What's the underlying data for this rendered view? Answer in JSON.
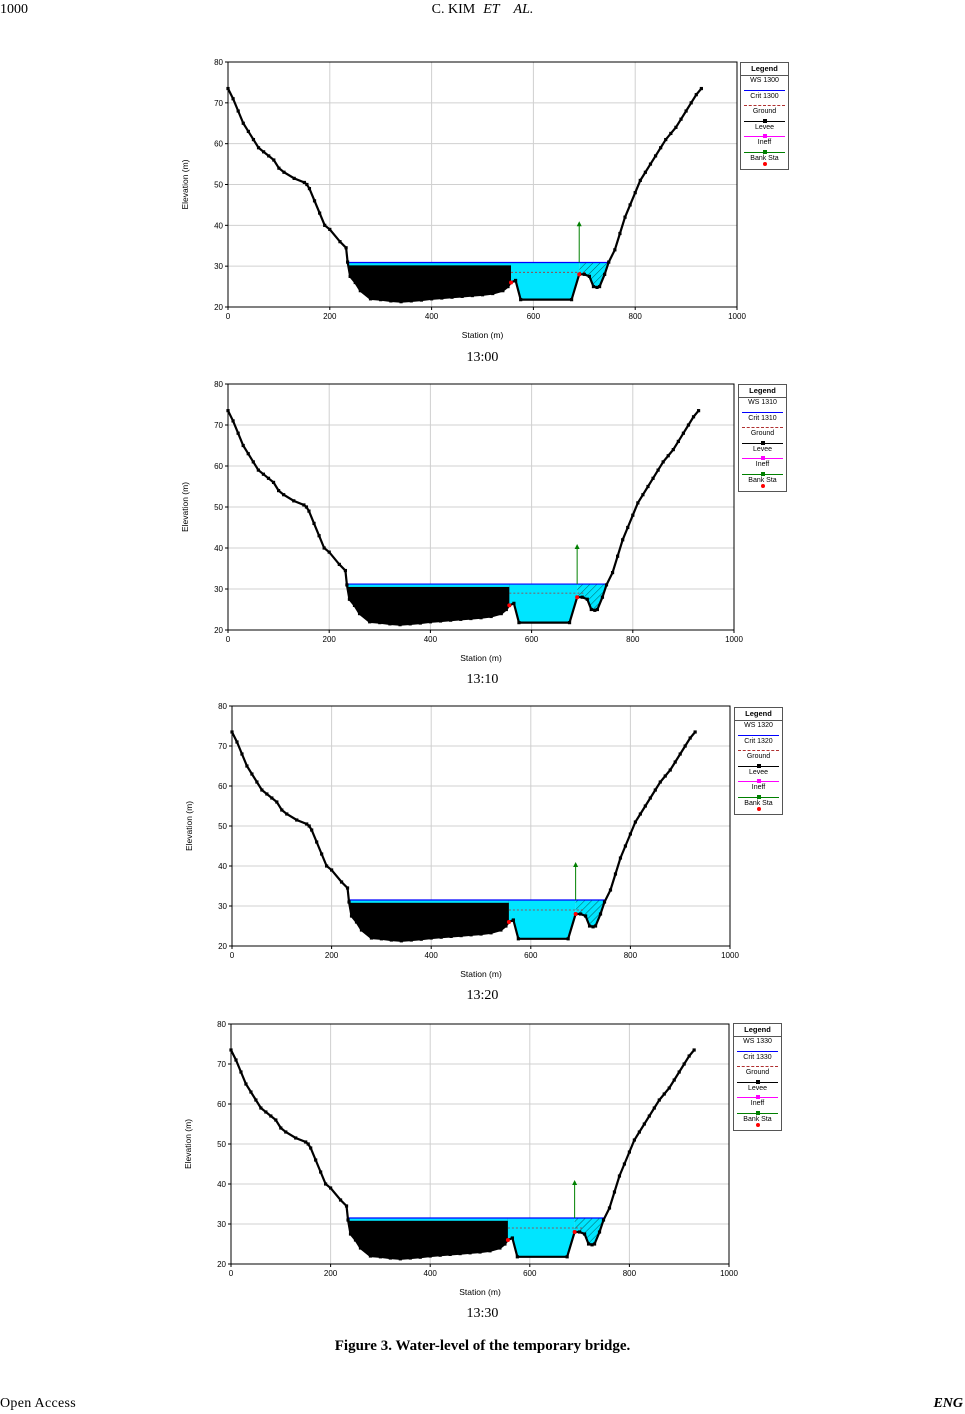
{
  "header": {
    "page_number": "1000",
    "authors_name": "C. KIM",
    "authors_et": "ET",
    "authors_al": "AL."
  },
  "footer": {
    "left": "Open  Access",
    "right": "ENG"
  },
  "figure_caption": "Figure 3. Water-level of the temporary bridge.",
  "colors": {
    "water": "#00e5ff",
    "ground": "#000000",
    "ws_line": "#0000ff",
    "crit_line": "#b03030",
    "levee": "#ff00ff",
    "ineff": "#008000",
    "bank_sta": "#ff0000",
    "grid": "#d0d0d0"
  },
  "chart_data": [
    {
      "type": "area",
      "caption": "13:00",
      "xlabel": "Station (m)",
      "ylabel": "Elevation (m)",
      "xlim": [
        0,
        1000
      ],
      "ylim": [
        20,
        80
      ],
      "xticks": [
        "0",
        "200",
        "400",
        "600",
        "800",
        "1000"
      ],
      "yticks": [
        "20",
        "30",
        "40",
        "50",
        "60",
        "70",
        "80"
      ],
      "legend": {
        "title": "Legend",
        "entries": [
          "WS 1300",
          "Crit 1300",
          "Ground",
          "Levee",
          "Ineff",
          "Bank Sta"
        ]
      },
      "water_surface": 30.9,
      "critical_depth": 28.5,
      "ineff_station": 690,
      "ineff_top": 40.5,
      "ground": [
        [
          0,
          73.5
        ],
        [
          10,
          71
        ],
        [
          20,
          68
        ],
        [
          30,
          65
        ],
        [
          40,
          63
        ],
        [
          50,
          61
        ],
        [
          60,
          59
        ],
        [
          70,
          58
        ],
        [
          80,
          57
        ],
        [
          90,
          56
        ],
        [
          100,
          54
        ],
        [
          110,
          53
        ],
        [
          130,
          51.5
        ],
        [
          150,
          50.5
        ],
        [
          155,
          50
        ],
        [
          160,
          49
        ],
        [
          170,
          46
        ],
        [
          180,
          43
        ],
        [
          190,
          40
        ],
        [
          200,
          39
        ],
        [
          220,
          36
        ],
        [
          232,
          34.5
        ],
        [
          235,
          31
        ],
        [
          240,
          27.5
        ],
        [
          250,
          26
        ],
        [
          260,
          24
        ],
        [
          280,
          22
        ],
        [
          300,
          21.8
        ],
        [
          320,
          21.5
        ],
        [
          340,
          21.3
        ],
        [
          360,
          21.5
        ],
        [
          380,
          21.7
        ],
        [
          400,
          22
        ],
        [
          420,
          22.2
        ],
        [
          440,
          22.4
        ],
        [
          460,
          22.6
        ],
        [
          480,
          22.8
        ],
        [
          500,
          23
        ],
        [
          520,
          23.3
        ],
        [
          540,
          24
        ],
        [
          550,
          25
        ],
        [
          556,
          26
        ],
        [
          565,
          26.5
        ],
        [
          575,
          21.8
        ],
        [
          675,
          21.8
        ],
        [
          690,
          28
        ],
        [
          700,
          28
        ],
        [
          710,
          27.5
        ],
        [
          718,
          25
        ],
        [
          725,
          24.8
        ],
        [
          730,
          25
        ],
        [
          740,
          28
        ],
        [
          748,
          31
        ],
        [
          760,
          34
        ],
        [
          770,
          38
        ],
        [
          780,
          42
        ],
        [
          790,
          45
        ],
        [
          800,
          48
        ],
        [
          810,
          51
        ],
        [
          820,
          53
        ],
        [
          830,
          55
        ],
        [
          840,
          57
        ],
        [
          850,
          59
        ],
        [
          860,
          61
        ],
        [
          870,
          62.5
        ],
        [
          880,
          64
        ],
        [
          890,
          66
        ],
        [
          900,
          68
        ],
        [
          910,
          70
        ],
        [
          920,
          72
        ],
        [
          930,
          73.5
        ]
      ]
    },
    {
      "type": "area",
      "caption": "13:10",
      "xlabel": "Station (m)",
      "ylabel": "Elevation (m)",
      "xlim": [
        0,
        1000
      ],
      "ylim": [
        20,
        80
      ],
      "xticks": [
        "0",
        "200",
        "400",
        "600",
        "800",
        "1000"
      ],
      "yticks": [
        "20",
        "30",
        "40",
        "50",
        "60",
        "70",
        "80"
      ],
      "legend": {
        "title": "Legend",
        "entries": [
          "WS 1310",
          "Crit 1310",
          "Ground",
          "Levee",
          "Ineff",
          "Bank Sta"
        ]
      },
      "water_surface": 31.2,
      "critical_depth": 29.0,
      "ineff_station": 690,
      "ineff_top": 40.5,
      "ground": [
        [
          0,
          73.5
        ],
        [
          10,
          71
        ],
        [
          20,
          68
        ],
        [
          30,
          65
        ],
        [
          40,
          63
        ],
        [
          50,
          61
        ],
        [
          60,
          59
        ],
        [
          70,
          58
        ],
        [
          80,
          57
        ],
        [
          90,
          56
        ],
        [
          100,
          54
        ],
        [
          110,
          53
        ],
        [
          130,
          51.5
        ],
        [
          150,
          50.5
        ],
        [
          155,
          50
        ],
        [
          160,
          49
        ],
        [
          170,
          46
        ],
        [
          180,
          43
        ],
        [
          190,
          40
        ],
        [
          200,
          39
        ],
        [
          220,
          36
        ],
        [
          232,
          34.5
        ],
        [
          235,
          31
        ],
        [
          240,
          27.5
        ],
        [
          250,
          26
        ],
        [
          260,
          24
        ],
        [
          280,
          22
        ],
        [
          300,
          21.8
        ],
        [
          320,
          21.5
        ],
        [
          340,
          21.3
        ],
        [
          360,
          21.5
        ],
        [
          380,
          21.7
        ],
        [
          400,
          22
        ],
        [
          420,
          22.2
        ],
        [
          440,
          22.4
        ],
        [
          460,
          22.6
        ],
        [
          480,
          22.8
        ],
        [
          500,
          23
        ],
        [
          520,
          23.3
        ],
        [
          540,
          24
        ],
        [
          550,
          25
        ],
        [
          556,
          26
        ],
        [
          565,
          26.5
        ],
        [
          575,
          21.8
        ],
        [
          675,
          21.8
        ],
        [
          690,
          28
        ],
        [
          700,
          28
        ],
        [
          710,
          27.5
        ],
        [
          718,
          25
        ],
        [
          725,
          24.8
        ],
        [
          730,
          25
        ],
        [
          740,
          28
        ],
        [
          748,
          31
        ],
        [
          760,
          34
        ],
        [
          770,
          38
        ],
        [
          780,
          42
        ],
        [
          790,
          45
        ],
        [
          800,
          48
        ],
        [
          810,
          51
        ],
        [
          820,
          53
        ],
        [
          830,
          55
        ],
        [
          840,
          57
        ],
        [
          850,
          59
        ],
        [
          860,
          61
        ],
        [
          870,
          62.5
        ],
        [
          880,
          64
        ],
        [
          890,
          66
        ],
        [
          900,
          68
        ],
        [
          910,
          70
        ],
        [
          920,
          72
        ],
        [
          930,
          73.5
        ]
      ]
    },
    {
      "type": "area",
      "caption": "13:20",
      "xlabel": "Station (m)",
      "ylabel": "Elevation (m)",
      "xlim": [
        0,
        1000
      ],
      "ylim": [
        20,
        80
      ],
      "xticks": [
        "0",
        "200",
        "400",
        "600",
        "800",
        "1000"
      ],
      "yticks": [
        "20",
        "30",
        "40",
        "50",
        "60",
        "70",
        "80"
      ],
      "legend": {
        "title": "Legend",
        "entries": [
          "WS 1320",
          "Crit 1320",
          "Ground",
          "Levee",
          "Ineff",
          "Bank Sta"
        ]
      },
      "water_surface": 31.5,
      "critical_depth": 29.0,
      "ineff_station": 690,
      "ineff_top": 40.5,
      "ground": [
        [
          0,
          73.5
        ],
        [
          10,
          71
        ],
        [
          20,
          68
        ],
        [
          30,
          65
        ],
        [
          40,
          63
        ],
        [
          50,
          61
        ],
        [
          60,
          59
        ],
        [
          70,
          58
        ],
        [
          80,
          57
        ],
        [
          90,
          56
        ],
        [
          100,
          54
        ],
        [
          110,
          53
        ],
        [
          130,
          51.5
        ],
        [
          150,
          50.5
        ],
        [
          155,
          50
        ],
        [
          160,
          49
        ],
        [
          170,
          46
        ],
        [
          180,
          43
        ],
        [
          190,
          40
        ],
        [
          200,
          39
        ],
        [
          220,
          36
        ],
        [
          232,
          34.5
        ],
        [
          235,
          31
        ],
        [
          240,
          27.5
        ],
        [
          250,
          26
        ],
        [
          260,
          24
        ],
        [
          280,
          22
        ],
        [
          300,
          21.8
        ],
        [
          320,
          21.5
        ],
        [
          340,
          21.3
        ],
        [
          360,
          21.5
        ],
        [
          380,
          21.7
        ],
        [
          400,
          22
        ],
        [
          420,
          22.2
        ],
        [
          440,
          22.4
        ],
        [
          460,
          22.6
        ],
        [
          480,
          22.8
        ],
        [
          500,
          23
        ],
        [
          520,
          23.3
        ],
        [
          540,
          24
        ],
        [
          550,
          25
        ],
        [
          556,
          26
        ],
        [
          565,
          26.5
        ],
        [
          575,
          21.8
        ],
        [
          675,
          21.8
        ],
        [
          690,
          28
        ],
        [
          700,
          28
        ],
        [
          710,
          27.5
        ],
        [
          718,
          25
        ],
        [
          725,
          24.8
        ],
        [
          730,
          25
        ],
        [
          740,
          28
        ],
        [
          748,
          31
        ],
        [
          760,
          34
        ],
        [
          770,
          38
        ],
        [
          780,
          42
        ],
        [
          790,
          45
        ],
        [
          800,
          48
        ],
        [
          810,
          51
        ],
        [
          820,
          53
        ],
        [
          830,
          55
        ],
        [
          840,
          57
        ],
        [
          850,
          59
        ],
        [
          860,
          61
        ],
        [
          870,
          62.5
        ],
        [
          880,
          64
        ],
        [
          890,
          66
        ],
        [
          900,
          68
        ],
        [
          910,
          70
        ],
        [
          920,
          72
        ],
        [
          930,
          73.5
        ]
      ]
    },
    {
      "type": "area",
      "caption": "13:30",
      "xlabel": "Station (m)",
      "ylabel": "Elevation (m)",
      "xlim": [
        0,
        1000
      ],
      "ylim": [
        20,
        80
      ],
      "xticks": [
        "0",
        "200",
        "400",
        "600",
        "800",
        "1000"
      ],
      "yticks": [
        "20",
        "30",
        "40",
        "50",
        "60",
        "70",
        "80"
      ],
      "legend": {
        "title": "Legend",
        "entries": [
          "WS 1330",
          "Crit 1330",
          "Ground",
          "Levee",
          "Ineff",
          "Bank Sta"
        ]
      },
      "water_surface": 31.5,
      "critical_depth": 29.0,
      "ineff_station": 690,
      "ineff_top": 40.5,
      "ground": [
        [
          0,
          73.5
        ],
        [
          10,
          71
        ],
        [
          20,
          68
        ],
        [
          30,
          65
        ],
        [
          40,
          63
        ],
        [
          50,
          61
        ],
        [
          60,
          59
        ],
        [
          70,
          58
        ],
        [
          80,
          57
        ],
        [
          90,
          56
        ],
        [
          100,
          54
        ],
        [
          110,
          53
        ],
        [
          130,
          51.5
        ],
        [
          150,
          50.5
        ],
        [
          155,
          50
        ],
        [
          160,
          49
        ],
        [
          170,
          46
        ],
        [
          180,
          43
        ],
        [
          190,
          40
        ],
        [
          200,
          39
        ],
        [
          220,
          36
        ],
        [
          232,
          34.5
        ],
        [
          235,
          31
        ],
        [
          240,
          27.5
        ],
        [
          250,
          26
        ],
        [
          260,
          24
        ],
        [
          280,
          22
        ],
        [
          300,
          21.8
        ],
        [
          320,
          21.5
        ],
        [
          340,
          21.3
        ],
        [
          360,
          21.5
        ],
        [
          380,
          21.7
        ],
        [
          400,
          22
        ],
        [
          420,
          22.2
        ],
        [
          440,
          22.4
        ],
        [
          460,
          22.6
        ],
        [
          480,
          22.8
        ],
        [
          500,
          23
        ],
        [
          520,
          23.3
        ],
        [
          540,
          24
        ],
        [
          550,
          25
        ],
        [
          556,
          26
        ],
        [
          565,
          26.5
        ],
        [
          575,
          21.8
        ],
        [
          675,
          21.8
        ],
        [
          690,
          28
        ],
        [
          700,
          28
        ],
        [
          710,
          27.5
        ],
        [
          718,
          25
        ],
        [
          725,
          24.8
        ],
        [
          730,
          25
        ],
        [
          740,
          28
        ],
        [
          748,
          31
        ],
        [
          760,
          34
        ],
        [
          770,
          38
        ],
        [
          780,
          42
        ],
        [
          790,
          45
        ],
        [
          800,
          48
        ],
        [
          810,
          51
        ],
        [
          820,
          53
        ],
        [
          830,
          55
        ],
        [
          840,
          57
        ],
        [
          850,
          59
        ],
        [
          860,
          61
        ],
        [
          870,
          62.5
        ],
        [
          880,
          64
        ],
        [
          890,
          66
        ],
        [
          900,
          68
        ],
        [
          910,
          70
        ],
        [
          920,
          72
        ],
        [
          930,
          73.5
        ]
      ]
    }
  ]
}
